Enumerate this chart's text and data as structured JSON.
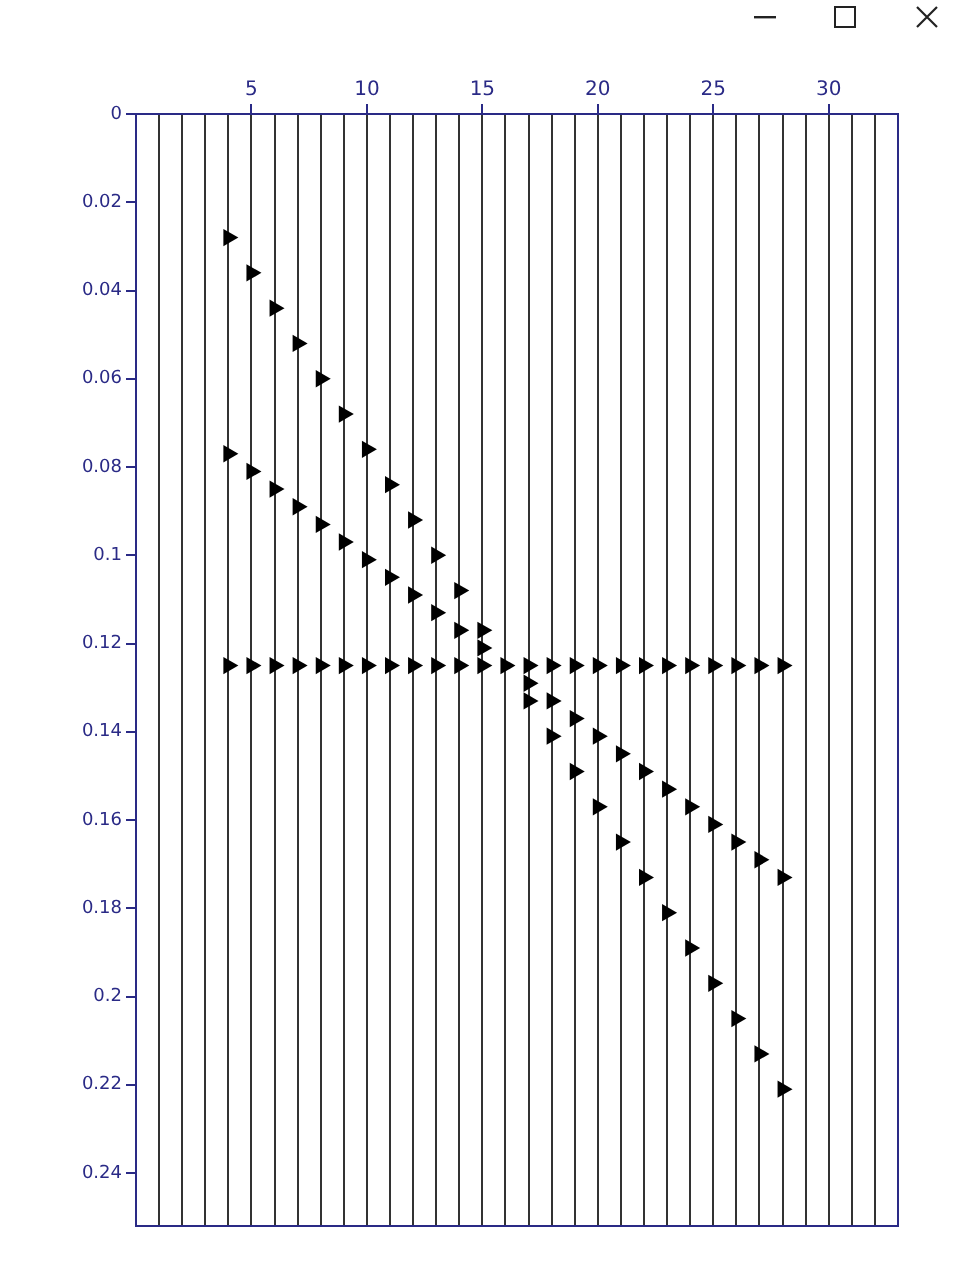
{
  "chart_data": {
    "type": "scatter",
    "marker": "triangle",
    "legend": false,
    "grid": "x",
    "xlim": [
      0,
      33
    ],
    "xticks": [
      {
        "value": 1,
        "label": null
      },
      {
        "value": 2,
        "label": null
      },
      {
        "value": 3,
        "label": null
      },
      {
        "value": 4,
        "label": null
      },
      5,
      {
        "value": 6,
        "label": null
      },
      {
        "value": 7,
        "label": null
      },
      {
        "value": 8,
        "label": null
      },
      {
        "value": 9,
        "label": null
      },
      10,
      {
        "value": 11,
        "label": null
      },
      {
        "value": 12,
        "label": null
      },
      {
        "value": 13,
        "label": null
      },
      {
        "value": 14,
        "label": null
      },
      15,
      {
        "value": 16,
        "label": null
      },
      {
        "value": 17,
        "label": null
      },
      {
        "value": 18,
        "label": null
      },
      {
        "value": 19,
        "label": null
      },
      20,
      {
        "value": 21,
        "label": null
      },
      {
        "value": 22,
        "label": null
      },
      {
        "value": 23,
        "label": null
      },
      {
        "value": 24,
        "label": null
      },
      25,
      {
        "value": 26,
        "label": null
      },
      {
        "value": 27,
        "label": null
      },
      {
        "value": 28,
        "label": null
      },
      {
        "value": 29,
        "label": null
      },
      30,
      {
        "value": 31,
        "label": null
      },
      {
        "value": 32,
        "label": null
      },
      {
        "value": 33,
        "label": null
      }
    ],
    "ylim": [
      0.252,
      0
    ],
    "yticks": [
      0,
      0.02,
      0.04,
      0.06,
      0.08,
      0.1,
      0.12,
      0.14,
      0.16,
      0.18,
      0.2,
      0.22,
      0.24
    ],
    "x": [
      4,
      5,
      6,
      7,
      8,
      9,
      10,
      11,
      12,
      13,
      14,
      15,
      16,
      17,
      18,
      19,
      20,
      21,
      22,
      23,
      24,
      25,
      26,
      27,
      28
    ],
    "series": [
      {
        "color": "#000000",
        "values": [
          0.028,
          0.036,
          0.044,
          0.052,
          0.06,
          0.068,
          0.076,
          0.084,
          0.092,
          0.1,
          0.108,
          0.117,
          null,
          0.133,
          0.141,
          0.149,
          0.157,
          0.165,
          0.173,
          0.181,
          0.189,
          0.197,
          0.205,
          0.213,
          0.221
        ]
      },
      {
        "color": "#000000",
        "values": [
          0.077,
          0.081,
          0.085,
          0.089,
          0.093,
          0.097,
          0.101,
          0.105,
          0.109,
          0.113,
          0.117,
          0.121,
          null,
          0.129,
          0.133,
          0.137,
          0.141,
          0.145,
          0.149,
          0.153,
          0.157,
          0.161,
          0.165,
          0.169,
          0.173
        ]
      },
      {
        "color": "#000000",
        "values": [
          0.125,
          0.125,
          0.125,
          0.125,
          0.125,
          0.125,
          0.125,
          0.125,
          0.125,
          0.125,
          0.125,
          0.125,
          0.125,
          0.125,
          0.125,
          0.125,
          0.125,
          0.125,
          0.125,
          0.125,
          0.125,
          0.125,
          0.125,
          0.125,
          0.125
        ]
      }
    ]
  }
}
